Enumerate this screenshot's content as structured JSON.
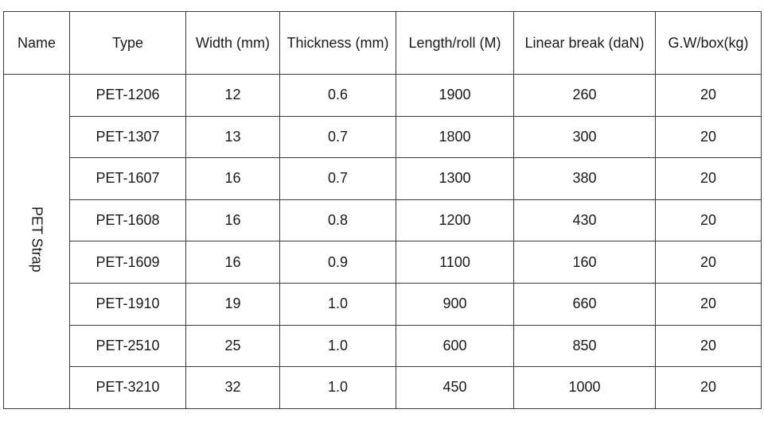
{
  "table": {
    "headers": {
      "name": "Name",
      "type": "Type",
      "width": "Width (mm)",
      "thickness": "Thickness (mm)",
      "length": "Length/roll (M)",
      "linear_break": "Linear break (daN)",
      "gross_weight": "G.W/box(kg)"
    },
    "group_name": "PET Strap",
    "rows": [
      {
        "type": "PET-1206",
        "width": "12",
        "thickness": "0.6",
        "length": "1900",
        "linear_break": "260",
        "gross_weight": "20"
      },
      {
        "type": "PET-1307",
        "width": "13",
        "thickness": "0.7",
        "length": "1800",
        "linear_break": "300",
        "gross_weight": "20"
      },
      {
        "type": "PET-1607",
        "width": "16",
        "thickness": "0.7",
        "length": "1300",
        "linear_break": "380",
        "gross_weight": "20"
      },
      {
        "type": "PET-1608",
        "width": "16",
        "thickness": "0.8",
        "length": "1200",
        "linear_break": "430",
        "gross_weight": "20"
      },
      {
        "type": "PET-1609",
        "width": "16",
        "thickness": "0.9",
        "length": "1100",
        "linear_break": "160",
        "gross_weight": "20"
      },
      {
        "type": "PET-1910",
        "width": "19",
        "thickness": "1.0",
        "length": "900",
        "linear_break": "660",
        "gross_weight": "20"
      },
      {
        "type": "PET-2510",
        "width": "25",
        "thickness": "1.0",
        "length": "600",
        "linear_break": "850",
        "gross_weight": "20"
      },
      {
        "type": "PET-3210",
        "width": "32",
        "thickness": "1.0",
        "length": "450",
        "linear_break": "1000",
        "gross_weight": "20"
      }
    ]
  }
}
